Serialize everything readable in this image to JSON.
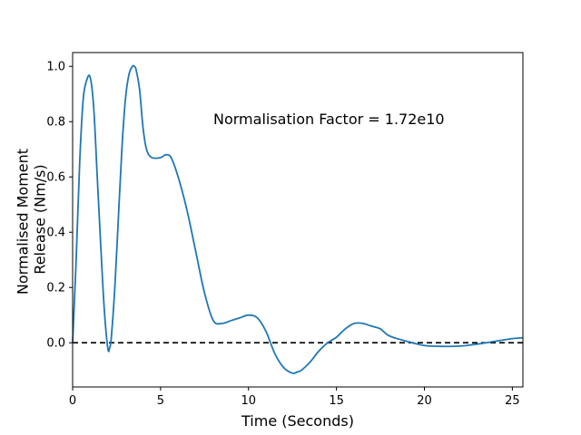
{
  "chart_data": {
    "type": "line",
    "title": "",
    "xlabel": "Time (Seconds)",
    "ylabel_lines": [
      "Normalised Moment",
      "Release (Nm/s)"
    ],
    "xlim": [
      0,
      25.6
    ],
    "ylim": [
      -0.16,
      1.05
    ],
    "x_ticks": [
      0,
      5,
      10,
      15,
      20,
      25
    ],
    "y_ticks": [
      0.0,
      0.2,
      0.4,
      0.6,
      0.8,
      1.0
    ],
    "x_tick_labels": [
      "0",
      "5",
      "10",
      "15",
      "20",
      "25"
    ],
    "y_tick_labels": [
      "0.0",
      "0.2",
      "0.4",
      "0.6",
      "0.8",
      "1.0"
    ],
    "grid": false,
    "annotation": {
      "text": "Normalisation Factor = 1.72e10",
      "x": 8.0,
      "y": 0.81
    },
    "reference_line": {
      "y": 0.0,
      "style": "dashed",
      "color": "#000000"
    },
    "series": [
      {
        "color": "#1f77b4",
        "x": [
          0,
          0.2,
          0.4,
          0.6,
          0.8,
          1.0,
          1.2,
          1.4,
          1.6,
          1.8,
          2.0,
          2.1,
          2.2,
          2.4,
          2.6,
          2.8,
          3.0,
          3.2,
          3.4,
          3.5,
          3.6,
          3.8,
          4.0,
          4.2,
          4.5,
          5.0,
          5.3,
          5.6,
          6.0,
          6.5,
          7.0,
          7.5,
          8.0,
          8.5,
          9.0,
          9.5,
          10.0,
          10.5,
          11.0,
          11.5,
          12.0,
          12.5,
          12.8,
          13.0,
          13.5,
          14.0,
          14.5,
          15.0,
          15.5,
          16.0,
          16.5,
          17.0,
          17.5,
          18.0,
          19.0,
          20.0,
          21.0,
          22.0,
          23.0,
          24.0,
          25.0,
          25.6
        ],
        "y": [
          0.0,
          0.3,
          0.65,
          0.88,
          0.95,
          0.96,
          0.85,
          0.6,
          0.35,
          0.12,
          -0.02,
          -0.02,
          0.02,
          0.2,
          0.45,
          0.7,
          0.88,
          0.97,
          1.0,
          1.0,
          0.99,
          0.92,
          0.78,
          0.7,
          0.67,
          0.67,
          0.68,
          0.67,
          0.6,
          0.48,
          0.33,
          0.18,
          0.08,
          0.07,
          0.08,
          0.09,
          0.1,
          0.09,
          0.04,
          -0.04,
          -0.09,
          -0.11,
          -0.105,
          -0.1,
          -0.07,
          -0.03,
          0.0,
          0.02,
          0.05,
          0.07,
          0.07,
          0.06,
          0.05,
          0.025,
          0.005,
          -0.01,
          -0.013,
          -0.012,
          -0.005,
          0.005,
          0.015,
          0.018
        ]
      }
    ]
  }
}
